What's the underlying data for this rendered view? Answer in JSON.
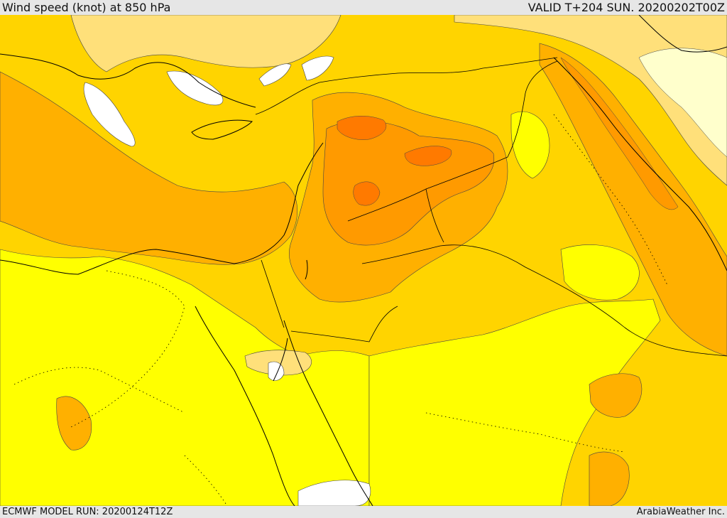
{
  "header": {
    "title": "Wind speed (knot) at 850 hPa",
    "valid": "VALID T+204 SUN. 20200202T00Z"
  },
  "footer": {
    "model_run": "ECMWF MODEL RUN: 20200124T12Z",
    "credit": "ArabiaWeather Inc."
  },
  "palette": {
    "below_threshold": "#ffffff",
    "light": "#ffffcc",
    "band_1": "#ffe07a",
    "band_2": "#ffff00",
    "band_3": "#ffd400",
    "band_4": "#ffb000",
    "band_5": "#ff9a00",
    "band_6": "#ff7a00",
    "coastline": "#000000"
  }
}
